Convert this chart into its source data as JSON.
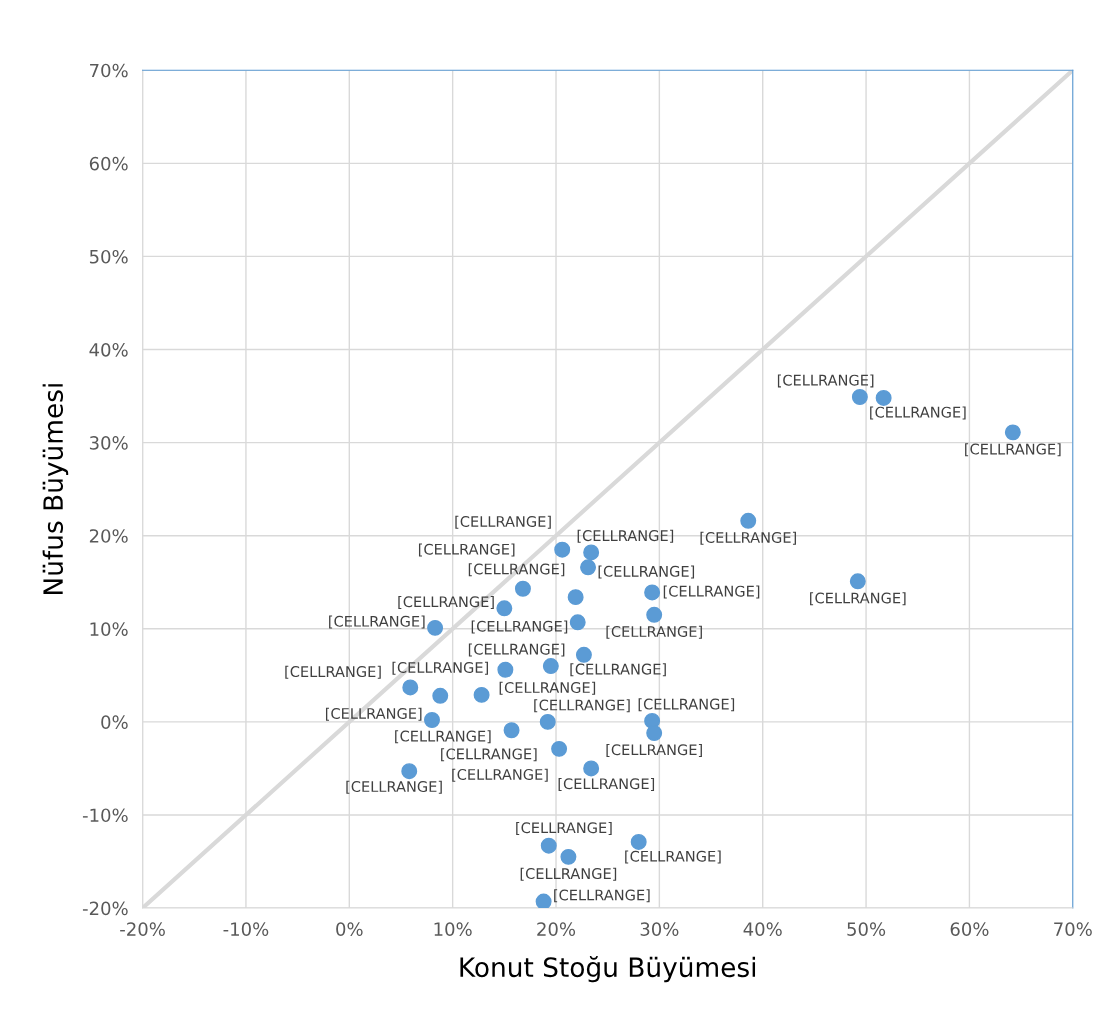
{
  "chart_data": {
    "type": "scatter",
    "xlabel": "Konut Stoğu Büyümesi",
    "ylabel": "Nüfus Büyümesi",
    "series": [
      {
        "color": "#5b9bd5",
        "marker": "circle",
        "x": [
          49.4,
          51.7,
          64.2,
          38.6,
          49.2,
          20.6,
          23.4,
          23.1,
          16.8,
          21.9,
          29.3,
          29.5,
          15.0,
          22.1,
          8.3,
          22.7,
          19.5,
          15.1,
          5.9,
          8.8,
          12.8,
          8.0,
          15.7,
          19.2,
          29.3,
          29.5,
          20.3,
          23.4,
          5.8,
          28.0,
          19.3,
          21.2,
          18.8
        ],
        "values": [
          34.9,
          34.8,
          31.1,
          21.6,
          15.1,
          18.5,
          18.2,
          16.6,
          14.3,
          13.4,
          13.9,
          11.5,
          12.2,
          10.7,
          10.1,
          7.2,
          6.0,
          5.6,
          3.7,
          2.8,
          2.9,
          0.2,
          -0.9,
          0.0,
          0.1,
          -1.2,
          -2.9,
          -5.0,
          -5.3,
          -12.9,
          -13.3,
          -14.5,
          -19.3
        ],
        "value_labels": [
          "[CELLRANGE]",
          "[CELLRANGE]",
          "[CELLRANGE]",
          "[CELLRANGE]",
          "[CELLRANGE]",
          "[CELLRANGE]",
          "[CELLRANGE]",
          "[CELLRANGE]",
          "[CELLRANGE]",
          "[CELLRANGE]",
          "[CELLRANGE]",
          "[CELLRANGE]",
          "[CELLRANGE]",
          "[CELLRANGE]",
          "[CELLRANGE]",
          "[CELLRANGE]",
          "[CELLRANGE]",
          "[CELLRANGE]",
          "[CELLRANGE]",
          "[CELLRANGE]",
          "[CELLRANGE]",
          "[CELLRANGE]",
          "[CELLRANGE]",
          "[CELLRANGE]",
          "[CELLRANGE]",
          "[CELLRANGE]",
          "[CELLRANGE]",
          "[CELLRANGE]",
          "[CELLRANGE]",
          "[CELLRANGE]",
          "[CELLRANGE]",
          "[CELLRANGE]",
          "[CELLRANGE]"
        ]
      },
      {
        "type": "line",
        "color": "#d9d9d9",
        "x": [
          -20,
          70
        ],
        "values": [
          -20,
          70
        ]
      }
    ],
    "xlim": [
      -20,
      70
    ],
    "ylim": [
      -20,
      70
    ],
    "xticks": [
      {
        "value": -20,
        "label": "-20%"
      },
      {
        "value": -10,
        "label": "-10%"
      },
      {
        "value": 0,
        "label": "0%"
      },
      {
        "value": 10,
        "label": "10%"
      },
      {
        "value": 20,
        "label": "20%"
      },
      {
        "value": 30,
        "label": "30%"
      },
      {
        "value": 40,
        "label": "40%"
      },
      {
        "value": 50,
        "label": "50%"
      },
      {
        "value": 60,
        "label": "60%"
      },
      {
        "value": 70,
        "label": "70%"
      }
    ],
    "yticks": [
      {
        "value": -20,
        "label": "-20%"
      },
      {
        "value": -10,
        "label": "-10%"
      },
      {
        "value": 0,
        "label": "0%"
      },
      {
        "value": 10,
        "label": "10%"
      },
      {
        "value": 20,
        "label": "20%"
      },
      {
        "value": 30,
        "label": "30%"
      },
      {
        "value": 40,
        "label": "40%"
      },
      {
        "value": 50,
        "label": "50%"
      },
      {
        "value": 60,
        "label": "60%"
      },
      {
        "value": 70,
        "label": "70%"
      }
    ],
    "grid": true,
    "legend": false
  }
}
